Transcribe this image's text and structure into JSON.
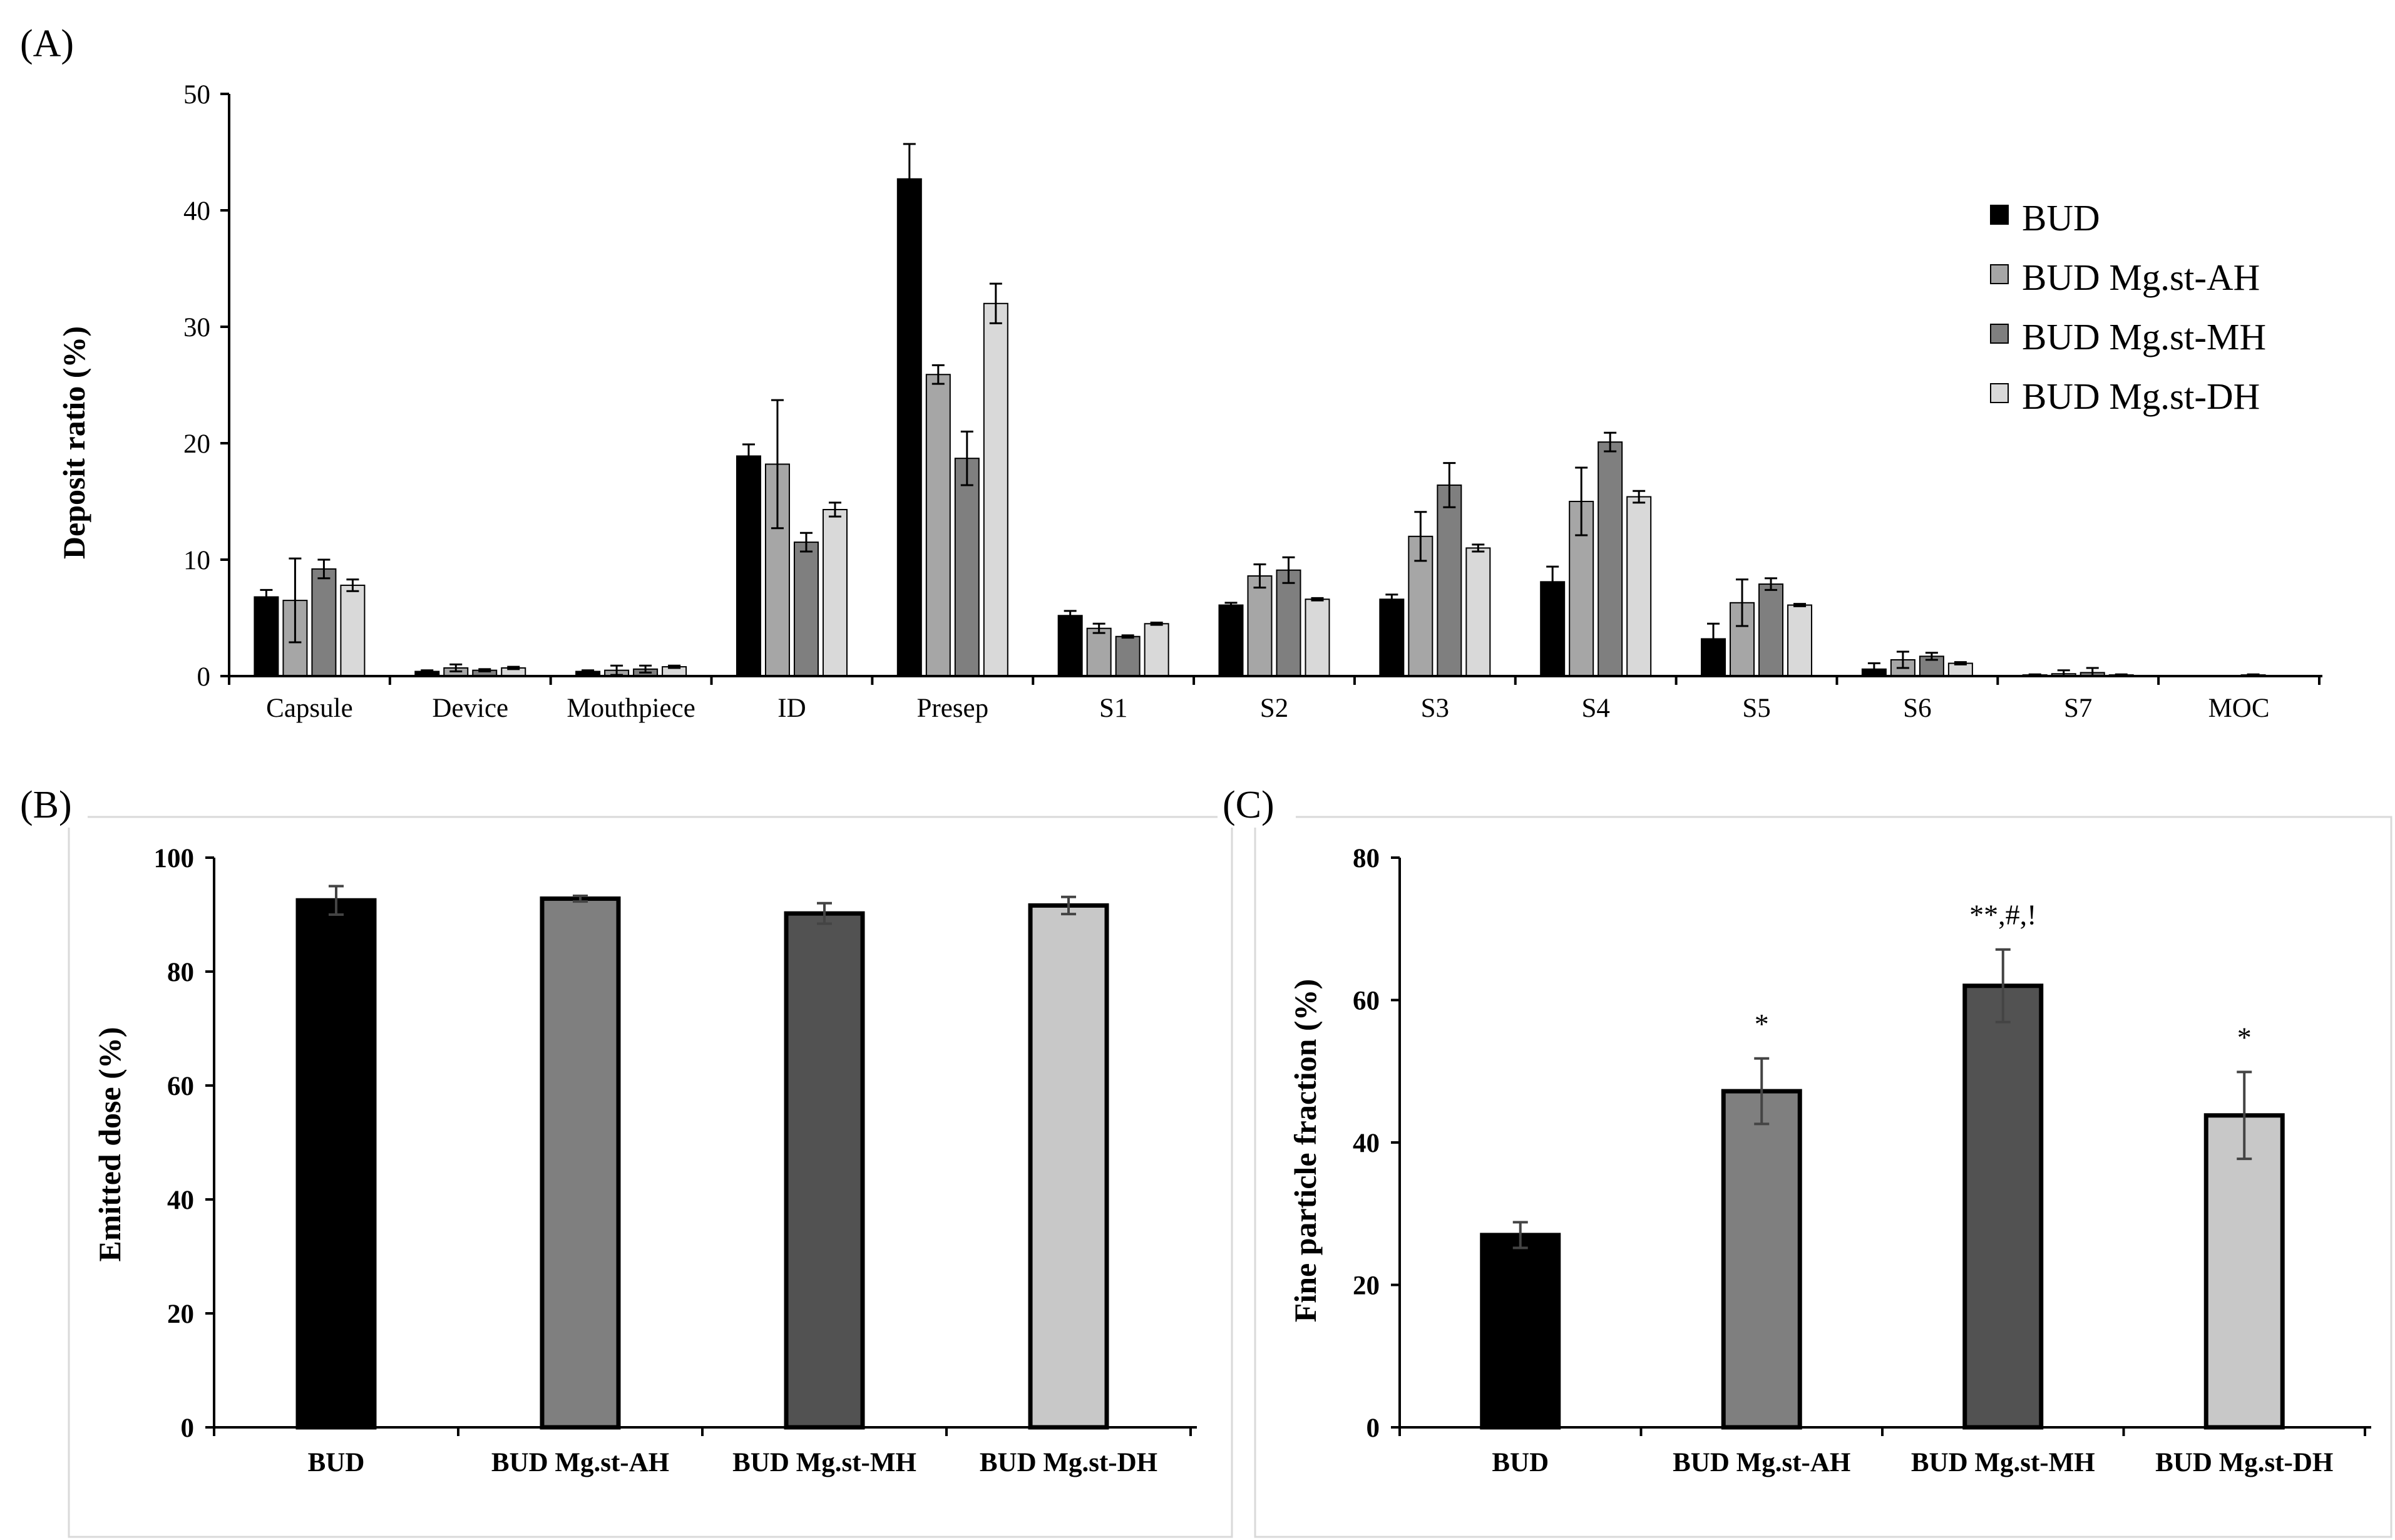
{
  "chart_data": [
    {
      "panel": "(A)",
      "type": "bar",
      "title": "",
      "xlabel": "",
      "ylabel": "Deposit ratio (%)",
      "ylim": [
        0,
        50
      ],
      "yticks": [
        0,
        10,
        20,
        30,
        40,
        50
      ],
      "categories": [
        "Capsule",
        "Device",
        "Mouthpiece",
        "ID",
        "Presep",
        "S1",
        "S2",
        "S3",
        "S4",
        "S5",
        "S6",
        "S7",
        "MOC"
      ],
      "legend_position": "top-right",
      "series": [
        {
          "name": "BUD",
          "color": "#000000",
          "values": [
            6.8,
            0.4,
            0.4,
            18.9,
            42.7,
            5.2,
            6.1,
            6.6,
            8.1,
            3.2,
            0.6,
            0.1,
            0.0
          ],
          "errors": [
            0.6,
            0.1,
            0.1,
            1.0,
            3.0,
            0.4,
            0.2,
            0.4,
            1.3,
            1.3,
            0.5,
            0.05,
            0.0
          ]
        },
        {
          "name": "BUD Mg.st-AH",
          "color": "#a6a6a6",
          "values": [
            6.5,
            0.7,
            0.5,
            18.2,
            25.9,
            4.1,
            8.6,
            12.0,
            15.0,
            6.3,
            1.4,
            0.2,
            0.0
          ],
          "errors": [
            3.6,
            0.3,
            0.4,
            5.5,
            0.8,
            0.4,
            1.0,
            2.1,
            2.9,
            2.0,
            0.7,
            0.3,
            0.0
          ]
        },
        {
          "name": "BUD Mg.st-MH",
          "color": "#7f7f7f",
          "values": [
            9.2,
            0.5,
            0.6,
            11.5,
            18.7,
            3.4,
            9.1,
            16.4,
            20.1,
            7.9,
            1.7,
            0.3,
            0.1
          ],
          "errors": [
            0.8,
            0.1,
            0.3,
            0.8,
            2.3,
            0.1,
            1.1,
            1.9,
            0.8,
            0.5,
            0.3,
            0.4,
            0.05
          ]
        },
        {
          "name": "BUD Mg.st-DH",
          "color": "#d9d9d9",
          "values": [
            7.8,
            0.7,
            0.8,
            14.3,
            32.0,
            4.5,
            6.6,
            11.0,
            15.4,
            6.1,
            1.1,
            0.1,
            0.0
          ],
          "errors": [
            0.5,
            0.1,
            0.1,
            0.6,
            1.7,
            0.1,
            0.1,
            0.3,
            0.5,
            0.1,
            0.1,
            0.05,
            0.0
          ]
        }
      ]
    },
    {
      "panel": "(B)",
      "type": "bar",
      "title": "",
      "xlabel": "",
      "ylabel": "Emitted dose (%)",
      "ylim": [
        0,
        100
      ],
      "yticks": [
        0,
        20,
        40,
        60,
        80,
        100
      ],
      "categories": [
        "BUD",
        "BUD Mg.st-AH",
        "BUD Mg.st-MH",
        "BUD Mg.st-DH"
      ],
      "colors": [
        "#000000",
        "#7f7f7f",
        "#525252",
        "#c8c8c8"
      ],
      "values": [
        92.5,
        92.8,
        90.2,
        91.6
      ],
      "errors": [
        2.5,
        0.5,
        1.8,
        1.5
      ]
    },
    {
      "panel": "(C)",
      "type": "bar",
      "title": "",
      "xlabel": "",
      "ylabel": "Fine particle fraction (%)",
      "ylim": [
        0,
        80
      ],
      "yticks": [
        0,
        20,
        40,
        60,
        80
      ],
      "categories": [
        "BUD",
        "BUD Mg.st-AH",
        "BUD Mg.st-MH",
        "BUD Mg.st-DH"
      ],
      "colors": [
        "#000000",
        "#7f7f7f",
        "#525252",
        "#c8c8c8"
      ],
      "values": [
        27.0,
        47.2,
        62.0,
        43.8
      ],
      "errors": [
        1.8,
        4.6,
        5.1,
        6.1
      ],
      "annotations": [
        "",
        "*",
        "**,#,!",
        "*"
      ]
    }
  ]
}
